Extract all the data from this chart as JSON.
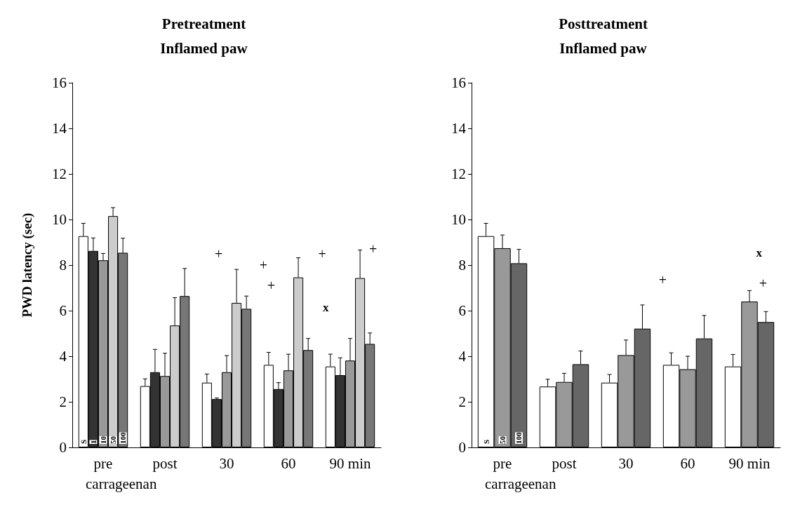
{
  "chart_data": [
    {
      "type": "bar",
      "title": "Pretreatment",
      "subtitle": "Inflamed paw",
      "ylabel": "PWD latency (sec)",
      "xlabel": "carrageenan",
      "categories": [
        "pre",
        "post",
        "30",
        "60",
        "90 min"
      ],
      "ylim": [
        0,
        16
      ],
      "yticks": [
        0,
        2,
        4,
        6,
        8,
        10,
        12,
        14,
        16
      ],
      "grid": false,
      "legend": false,
      "series": [
        {
          "name": "S",
          "color": "#ffffff",
          "values": [
            9.27,
            2.69,
            2.84,
            3.62,
            3.55
          ],
          "errors": [
            0.56,
            0.32,
            0.38,
            0.55,
            0.54
          ]
        },
        {
          "name": "1",
          "color": "#333333",
          "values": [
            8.62,
            3.3,
            2.12,
            2.56,
            3.17
          ],
          "errors": [
            0.57,
            1.0,
            0.05,
            0.28,
            0.76
          ]
        },
        {
          "name": "10",
          "color": "#999999",
          "values": [
            8.21,
            3.13,
            3.3,
            3.38,
            3.81
          ],
          "errors": [
            0.3,
            1.0,
            0.73,
            0.71,
            0.97
          ]
        },
        {
          "name": "50",
          "color": "#cccccc",
          "values": [
            10.15,
            5.35,
            6.34,
            7.46,
            7.43
          ],
          "errors": [
            0.37,
            1.22,
            1.47,
            0.86,
            1.23
          ]
        },
        {
          "name": "100",
          "color": "#777777",
          "values": [
            8.54,
            6.64,
            6.08,
            4.27,
            4.54
          ],
          "errors": [
            0.64,
            1.21,
            0.56,
            0.51,
            0.48
          ]
        }
      ],
      "annotations": [
        "+",
        "+",
        "+",
        "+",
        "x",
        "+"
      ]
    },
    {
      "type": "bar",
      "title": "Posttreatment",
      "subtitle": "Inflamed paw",
      "xlabel": "carrageenan",
      "categories": [
        "pre",
        "post",
        "30",
        "60",
        "90 min"
      ],
      "ylim": [
        0,
        16
      ],
      "yticks": [
        0,
        2,
        4,
        6,
        8,
        10,
        12,
        14,
        16
      ],
      "grid": false,
      "legend": false,
      "series": [
        {
          "name": "S",
          "color": "#ffffff",
          "values": [
            9.27,
            2.67,
            2.84,
            3.62,
            3.55
          ],
          "errors": [
            0.56,
            0.32,
            0.36,
            0.53,
            0.53
          ]
        },
        {
          "name": "50",
          "color": "#999999",
          "values": [
            8.74,
            2.87,
            4.05,
            3.43,
            6.4
          ],
          "errors": [
            0.58,
            0.38,
            0.66,
            0.57,
            0.48
          ]
        },
        {
          "name": "100",
          "color": "#666666",
          "values": [
            8.08,
            3.65,
            5.21,
            4.78,
            5.5
          ],
          "errors": [
            0.61,
            0.58,
            1.04,
            1.01,
            0.46
          ]
        }
      ],
      "annotations": [
        "+",
        "x",
        "+"
      ]
    }
  ]
}
